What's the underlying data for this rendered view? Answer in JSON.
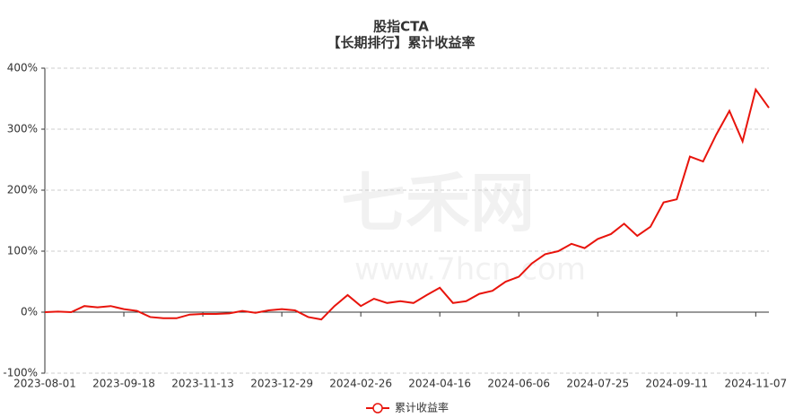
{
  "chart_data": {
    "type": "line",
    "title": "股指CTA",
    "subtitle": "【长期排行】累计收益率",
    "watermark": "七禾网",
    "watermark_url": "www.7hcn.com",
    "categories": [
      "2023-08-01",
      null,
      null,
      null,
      null,
      null,
      "2023-09-18",
      null,
      null,
      null,
      null,
      null,
      "2023-11-13",
      null,
      null,
      null,
      null,
      null,
      "2023-12-29",
      null,
      null,
      null,
      null,
      null,
      "2024-02-26",
      null,
      null,
      null,
      null,
      null,
      "2024-04-16",
      null,
      null,
      null,
      null,
      null,
      "2024-06-06",
      null,
      null,
      null,
      null,
      null,
      "2024-07-25",
      null,
      null,
      null,
      null,
      null,
      "2024-09-11",
      null,
      null,
      null,
      null,
      null,
      "2024-11-07",
      null
    ],
    "series": [
      {
        "name": "累计收益率",
        "color": "#e8140c",
        "values": [
          0,
          1,
          0,
          10,
          8,
          10,
          5,
          2,
          -8,
          -10,
          -10,
          -4,
          -3,
          -3,
          -2,
          2,
          -1,
          3,
          5,
          3,
          -8,
          -12,
          10,
          28,
          10,
          22,
          15,
          18,
          15,
          28,
          40,
          15,
          18,
          30,
          35,
          50,
          58,
          80,
          95,
          100,
          112,
          105,
          120,
          128,
          145,
          125,
          140,
          180,
          185,
          255,
          247,
          291,
          330,
          280,
          365,
          335
        ]
      }
    ],
    "ylim": [
      -100,
      400
    ],
    "yticks": [
      {
        "value": -100,
        "label": "-100%"
      },
      {
        "value": 0,
        "label": "0%"
      },
      {
        "value": 100,
        "label": "100%"
      },
      {
        "value": 200,
        "label": "200%"
      },
      {
        "value": 300,
        "label": "300%"
      },
      {
        "value": 400,
        "label": "400%"
      }
    ],
    "grid": true
  }
}
